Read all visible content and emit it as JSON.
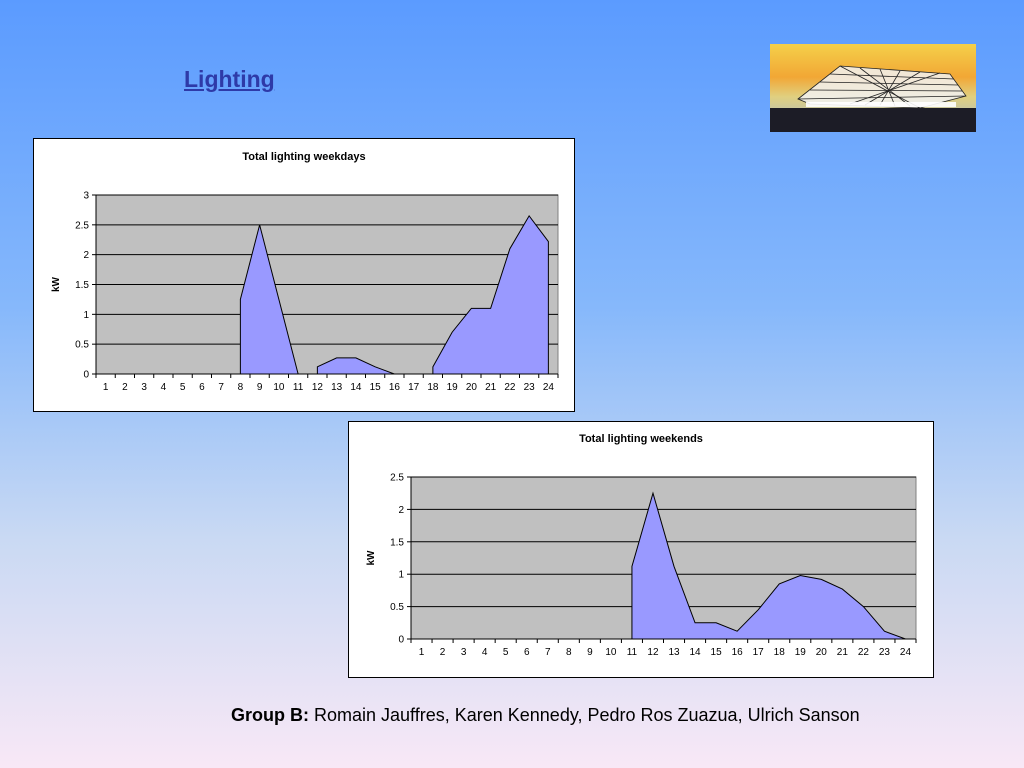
{
  "slide": {
    "title": "Lighting",
    "footer_group": "Group B:",
    "footer_names": " Romain Jauffres, Karen Kennedy, Pedro Ros Zuazua, Ulrich Sanson"
  },
  "chart_data": [
    {
      "type": "area",
      "title": "Total lighting weekdays",
      "xlabel": "",
      "ylabel": "kW",
      "categories": [
        "1",
        "2",
        "3",
        "4",
        "5",
        "6",
        "7",
        "8",
        "9",
        "10",
        "11",
        "12",
        "13",
        "14",
        "15",
        "16",
        "17",
        "18",
        "19",
        "20",
        "21",
        "22",
        "23",
        "24"
      ],
      "values": [
        0,
        0,
        0,
        0,
        0,
        0,
        0,
        1.25,
        2.5,
        1.25,
        0,
        0.12,
        0.27,
        0.27,
        0.12,
        0,
        0,
        0.12,
        0.7,
        1.1,
        1.1,
        2.1,
        2.65,
        2.22
      ],
      "gaps_after": [
        6,
        10,
        15,
        16
      ],
      "ylim": [
        0,
        3
      ],
      "yticks": [
        0,
        0.5,
        1,
        1.5,
        2,
        2.5,
        3
      ],
      "ytick_labels": [
        "0",
        "0.5",
        "1",
        "1.5",
        "2",
        "2.5",
        "3"
      ],
      "grid": true,
      "fill_color": "#9999ff",
      "plot_bg": "#c0c0c0"
    },
    {
      "type": "area",
      "title": "Total lighting weekends",
      "xlabel": "",
      "ylabel": "kW",
      "categories": [
        "1",
        "2",
        "3",
        "4",
        "5",
        "6",
        "7",
        "8",
        "9",
        "10",
        "11",
        "12",
        "13",
        "14",
        "15",
        "16",
        "17",
        "18",
        "19",
        "20",
        "21",
        "22",
        "23",
        "24"
      ],
      "values": [
        0,
        0,
        0,
        0,
        0,
        0,
        0,
        0,
        0,
        0,
        1.12,
        2.25,
        1.12,
        0.25,
        0.25,
        0.12,
        0.45,
        0.85,
        0.98,
        0.92,
        0.77,
        0.5,
        0.12,
        0
      ],
      "gaps_after": [
        9
      ],
      "ylim": [
        0,
        2.5
      ],
      "yticks": [
        0,
        0.5,
        1,
        1.5,
        2,
        2.5
      ],
      "ytick_labels": [
        "0",
        "0.5",
        "1",
        "1.5",
        "2",
        "2.5"
      ],
      "grid": true,
      "fill_color": "#9999ff",
      "plot_bg": "#c0c0c0"
    }
  ]
}
